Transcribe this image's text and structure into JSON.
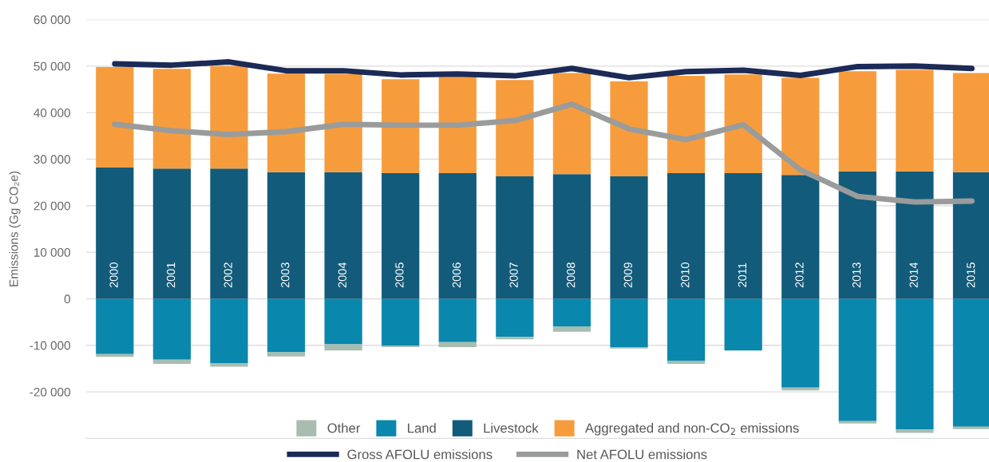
{
  "chart_data": {
    "type": "bar",
    "stacked": true,
    "ylabel": "Emissions (Gg CO₂e)",
    "categories": [
      "2000",
      "2001",
      "2002",
      "2003",
      "2004",
      "2005",
      "2006",
      "2007",
      "2008",
      "2009",
      "2010",
      "2011",
      "2012",
      "2013",
      "2014",
      "2015"
    ],
    "series": [
      {
        "name": "Land",
        "color": "#0a87ad",
        "values": [
          -11900,
          -13100,
          -13800,
          -11500,
          -9800,
          -10100,
          -9300,
          -8200,
          -6000,
          -10400,
          -13400,
          -11100,
          -19100,
          -26300,
          -28100,
          -27500
        ]
      },
      {
        "name": "Other",
        "color": "#a8bdb0",
        "values": [
          -600,
          -900,
          -800,
          -900,
          -1300,
          -300,
          -1100,
          -500,
          -1100,
          -300,
          -600,
          0,
          -600,
          -500,
          -700,
          -500
        ]
      },
      {
        "name": "Livestock",
        "color": "#135b7a",
        "values": [
          28200,
          28000,
          28000,
          27200,
          27200,
          27000,
          27000,
          26300,
          26800,
          26300,
          27000,
          27000,
          26600,
          27400,
          27400,
          27200
        ]
      },
      {
        "name": "Aggregated and non-CO$_{2}$ emissions",
        "color": "#f79c3d",
        "values": [
          21600,
          21400,
          22000,
          21200,
          21100,
          20200,
          20700,
          20700,
          21700,
          20400,
          20900,
          21200,
          20900,
          21500,
          21800,
          21300
        ]
      },
      {
        "name": "Gross AFOLU emissions",
        "type": "line",
        "color": "#1b2a56",
        "values": [
          50500,
          50200,
          50900,
          49000,
          49000,
          48100,
          48300,
          47900,
          49500,
          47500,
          48800,
          49100,
          48000,
          49900,
          50000,
          49500
        ]
      },
      {
        "name": "Net AFOLU emissions",
        "type": "line",
        "color": "#9a9c9c",
        "values": [
          37500,
          36100,
          35300,
          35900,
          37500,
          37300,
          37300,
          38300,
          41800,
          36500,
          34200,
          37400,
          27700,
          22000,
          20800,
          21000
        ]
      }
    ],
    "ylim": [
      -30000,
      60000
    ],
    "yticks": [
      {
        "value": -20000,
        "label": "-20 000"
      },
      {
        "value": -10000,
        "label": "-10 000"
      },
      0,
      {
        "value": 10000,
        "label": "10 000"
      },
      {
        "value": 20000,
        "label": "20 000"
      },
      {
        "value": 30000,
        "label": "30 000"
      },
      {
        "value": 40000,
        "label": "40 000"
      },
      {
        "value": 50000,
        "label": "50 000"
      },
      {
        "value": 60000,
        "label": "60 000"
      }
    ],
    "grid": "y",
    "legend": "bottom",
    "marker": "none",
    "line_style": "solid"
  }
}
